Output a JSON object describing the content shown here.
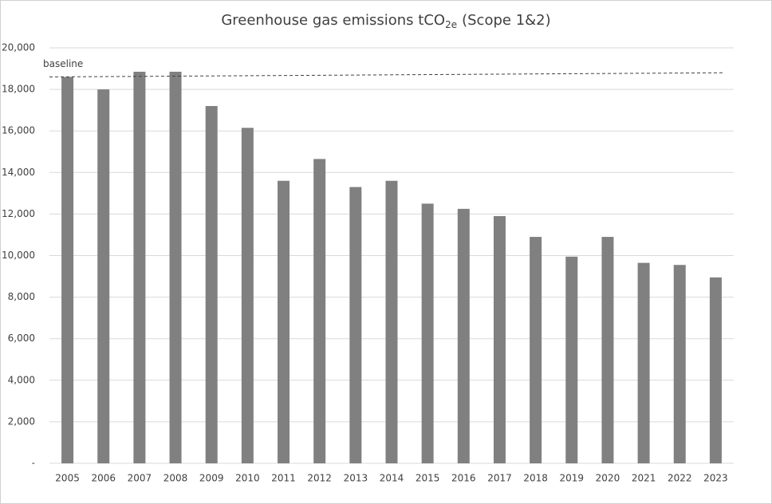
{
  "chart_data": {
    "type": "bar",
    "title": {
      "text": "Greenhouse gas emissions tCO",
      "subscript": "2e",
      "suffix": "(Scope 1&2)"
    },
    "categories": [
      "2005",
      "2006",
      "2007",
      "2008",
      "2009",
      "2010",
      "2011",
      "2012",
      "2013",
      "2014",
      "2015",
      "2016",
      "2017",
      "2018",
      "2019",
      "2020",
      "2021",
      "2022",
      "2023"
    ],
    "values": [
      18600,
      18000,
      18850,
      18850,
      17200,
      16150,
      13600,
      14650,
      13300,
      13600,
      12500,
      12250,
      11900,
      10900,
      9950,
      10900,
      9650,
      9550,
      8950
    ],
    "color": "#808080",
    "baseline": {
      "name": "baseline",
      "values": [
        18600,
        18800
      ],
      "color": "#404040"
    },
    "ylim": [
      0,
      20000
    ],
    "yticks": [
      {
        "value": 0,
        "label": "-"
      },
      {
        "value": 2000,
        "label": "2,000"
      },
      {
        "value": 4000,
        "label": "4,000"
      },
      {
        "value": 6000,
        "label": "6,000"
      },
      {
        "value": 8000,
        "label": "8,000"
      },
      {
        "value": 10000,
        "label": "10,000"
      },
      {
        "value": 12000,
        "label": "12,000"
      },
      {
        "value": 14000,
        "label": "14,000"
      },
      {
        "value": 16000,
        "label": "16,000"
      },
      {
        "value": 18000,
        "label": "18,000"
      },
      {
        "value": 20000,
        "label": "20,000"
      }
    ],
    "grid": true
  }
}
